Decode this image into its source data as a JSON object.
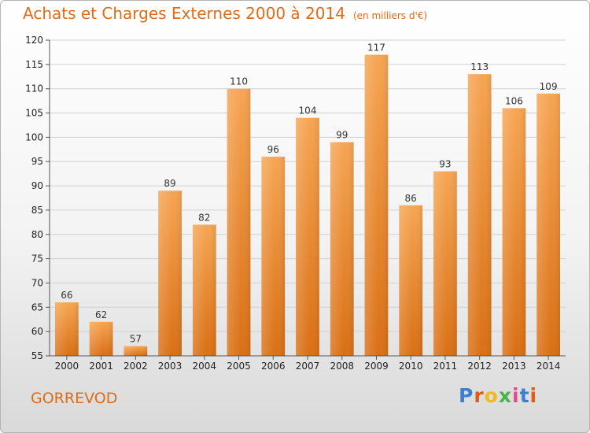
{
  "title": "Achats et Charges Externes 2000 à 2014",
  "subtitle": "(en milliers d'€)",
  "commune": "GORREVOD",
  "logo_text": "Proxiti",
  "colors": {
    "bar_top": "#f6a552",
    "bar_bottom": "#d96f14",
    "title": "#e06b18"
  },
  "chart_data": {
    "type": "bar",
    "categories": [
      "2000",
      "2001",
      "2002",
      "2003",
      "2004",
      "2005",
      "2006",
      "2007",
      "2008",
      "2009",
      "2010",
      "2011",
      "2012",
      "2013",
      "2014"
    ],
    "values": [
      66,
      62,
      57,
      89,
      82,
      110,
      96,
      104,
      99,
      117,
      86,
      93,
      113,
      106,
      109
    ],
    "ylim": [
      55,
      120
    ],
    "yticks": [
      55,
      60,
      65,
      70,
      75,
      80,
      85,
      90,
      95,
      100,
      105,
      110,
      115,
      120
    ],
    "grid": true
  }
}
